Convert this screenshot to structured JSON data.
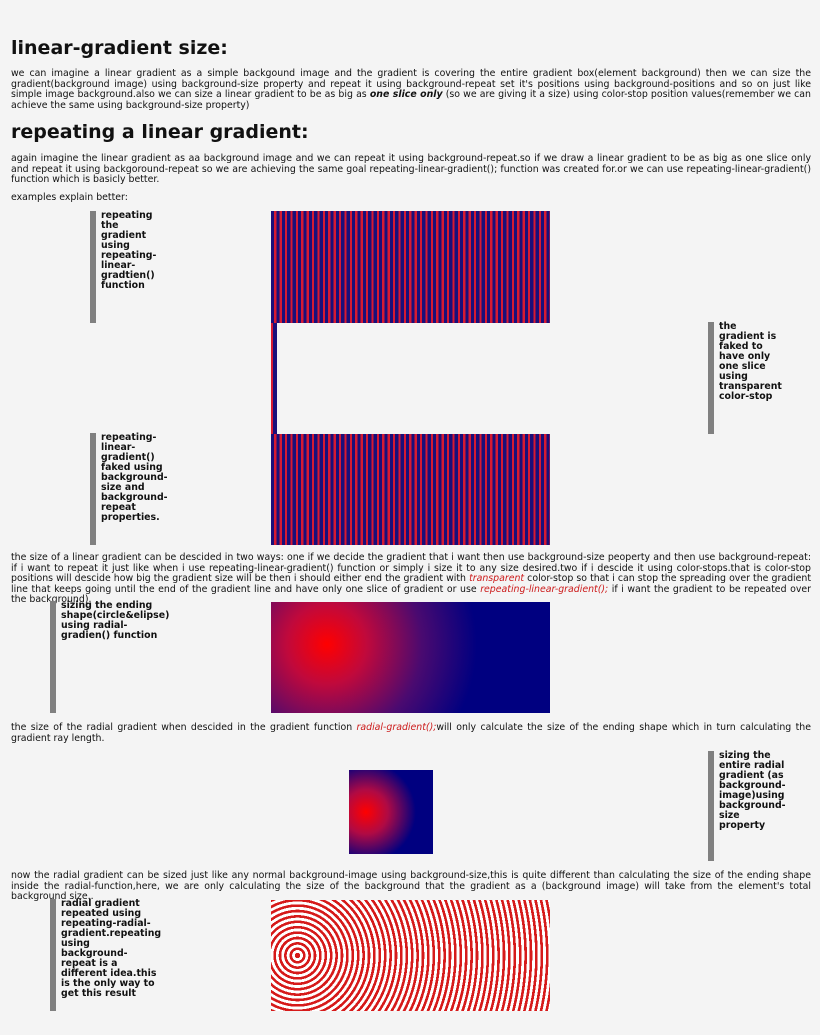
{
  "section1": {
    "heading": "linear-gradient size:",
    "para_a": "we can imagine a linear gradient as a simple backgound image and the gradient is covering the entire gradient box(element background) then we can size the gradient(background image) using background-size property and repeat it using background-repeat set it's positions using background-positions and so on just like simple image background.also we can size a linear gradient to be as big as ",
    "para_emph": "one slice only",
    "para_b": " (so we are giving it a size) using color-stop position values(remember we can achieve the same using background-size property)"
  },
  "section2": {
    "heading": "repeating a linear gradient:",
    "para": "again imagine the linear gradient as aa background image and we can repeat it using background-repeat.so if we draw a linear gradient to be as big as one slice only and repeat it using backgoround-repeat so we are achieving the same goal repeating-linear-gradient(); function was created for.or we can use repeating-linear-gradient() function which is basicly better.",
    "examples_label": "examples explain better:"
  },
  "notes": {
    "repeating_func": "repeating the gradient using repeating-linear-gradtien() function",
    "faked_slice": "the gradient is faked to have only one slice using transparent color-stop",
    "faked_bg": "repeating-linear-gradient() faked using background-size and background-repeat properties.",
    "sizing_shape": "sizing the ending shape(circle&elipse) using radial-gradien() function",
    "sizing_entire": "sizing the entire radial gradient (as background-image)using background-size property",
    "radial_repeated": "radial gradient repeated using repeating-radial-gradient.repeating using background-repeat is a different idea.this is the only way to get this result"
  },
  "para_size": {
    "a": "the size of a linear gradient can be descided in two ways: one if we decide the gradient that i want then use background-size peoperty and then use background-repeat: if i want to repeat it just like when i use repeating-linear-gradient() function or simply i size it to any size desired.two if i descide it using color-stops.that is color-stop positions will descide how big the gradient size will be then i should either end the gradient with ",
    "em1": "transparent",
    "b": " color-stop so that i can stop the spreading over the gradient line that keeps going until the end of the gradient line and have only one slice of gradient or use ",
    "em2": "repeating-linear-gradient();",
    "c": " if i want the gradient to be repeated over the background)."
  },
  "para_radial": {
    "a": "the size of the radial gradient when descided in the gradient function ",
    "em": "radial-gradient();",
    "b": "will only calculate the size of the ending shape which in turn calculating the gradient ray length."
  },
  "para_bgsize": "now the radial gradient can be sized just like any normal background-image using background-size,this is quite different than calculating the size of the ending shape inside the radial-function,here, we are only calculating the size of the background that the gradient as a (background image) will take from the element's total background size..",
  "colors": {
    "navy": "#1a0f7a",
    "red": "#d61a32",
    "note_bar": "#808080",
    "emphasis": "#cc1b1b"
  }
}
